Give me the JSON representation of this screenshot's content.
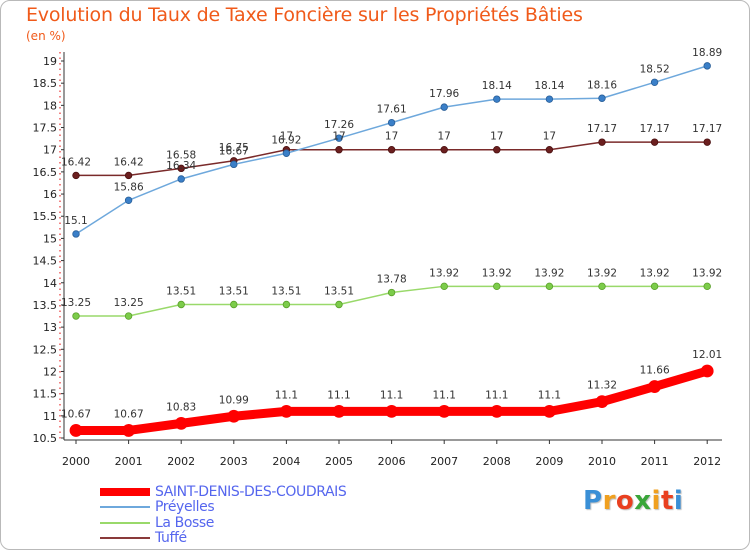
{
  "header": {
    "title": "Evolution du Taux de Taxe Foncière sur les Propriétés Bâties",
    "unit": "(en %)"
  },
  "chart_data": {
    "type": "line",
    "title": "Evolution du Taux de Taxe Foncière sur les Propriétés Bâties",
    "ylabel": "(en %)",
    "xlabel": "",
    "ylim": [
      10.5,
      19
    ],
    "yticks": [
      "10.5",
      "11",
      "11.5",
      "12",
      "12.5",
      "13",
      "13.5",
      "14",
      "14.5",
      "15",
      "15.5",
      "16",
      "16.5",
      "17",
      "17.5",
      "18",
      "18.5",
      "19"
    ],
    "x": [
      "2000",
      "2001",
      "2002",
      "2003",
      "2004",
      "2005",
      "2006",
      "2007",
      "2008",
      "2009",
      "2010",
      "2011",
      "2012"
    ],
    "grid": false,
    "legend_position": "bottom-left",
    "series": [
      {
        "name": "SAINT-DENIS-DES-COUDRAIS",
        "color": "#ff0000",
        "values": [
          10.67,
          10.67,
          10.83,
          10.99,
          11.1,
          11.1,
          11.1,
          11.1,
          11.1,
          11.1,
          11.32,
          11.66,
          12.01
        ],
        "labels": [
          "10.67",
          "10.67",
          "10.83",
          "10.99",
          "11.1",
          "11.1",
          "11.1",
          "11.1",
          "11.1",
          "11.1",
          "11.32",
          "11.66",
          "12.01"
        ]
      },
      {
        "name": "Préyelles",
        "color": "#6ea8dc",
        "values": [
          15.1,
          15.86,
          16.34,
          16.67,
          16.92,
          17.26,
          17.61,
          17.96,
          18.14,
          18.14,
          18.16,
          18.52,
          18.89
        ],
        "labels": [
          "15.1",
          "15.86",
          "16.34",
          "16.67",
          "16.92",
          "17.26",
          "17.61",
          "17.96",
          "18.14",
          "18.14",
          "18.16",
          "18.52",
          "18.89"
        ]
      },
      {
        "name": "La Bosse",
        "color": "#99d96a",
        "values": [
          13.25,
          13.25,
          13.51,
          13.51,
          13.51,
          13.51,
          13.78,
          13.92,
          13.92,
          13.92,
          13.92,
          13.92,
          13.92
        ],
        "labels": [
          "13.25",
          "13.25",
          "13.51",
          "13.51",
          "13.51",
          "13.51",
          "13.78",
          "13.92",
          "13.92",
          "13.92",
          "13.92",
          "13.92",
          "13.92"
        ]
      },
      {
        "name": "Tuffé",
        "color": "#8a3a3a",
        "values": [
          16.42,
          16.42,
          16.58,
          16.75,
          17,
          17,
          17,
          17,
          17,
          17,
          17.17,
          17.17,
          17.17
        ],
        "labels": [
          "16.42",
          "16.42",
          "16.58",
          "16.75",
          "17",
          "17",
          "17",
          "17",
          "17",
          "17",
          "17.17",
          "17.17",
          "17.17"
        ]
      }
    ]
  },
  "logo": {
    "letters": [
      "P",
      "r",
      "o",
      "x",
      "i",
      "t",
      "i"
    ],
    "colors": [
      "#3a8fd6",
      "#f0a020",
      "#e94020",
      "#3aa63a",
      "#f0a020",
      "#e94020",
      "#3a8fd6"
    ]
  }
}
